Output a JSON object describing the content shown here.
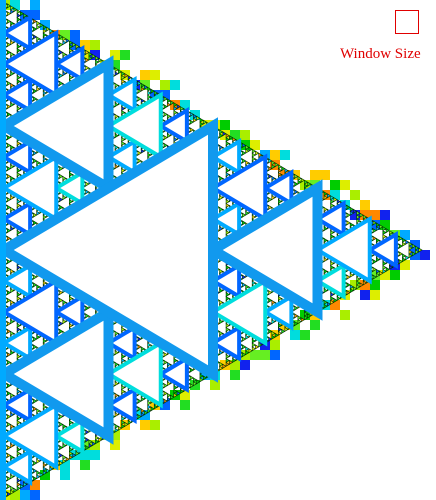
{
  "window_size_control": {
    "label": "Window Size",
    "color": "#e00000"
  },
  "fractal": {
    "kind": "sierpinski-triangle",
    "orientation": "pointing-right",
    "depth": 7,
    "fill_palette": [
      "#00cc00",
      "#22dd22",
      "#66ee22",
      "#aaee00",
      "#ddee00",
      "#ffcc00",
      "#ff8800",
      "#00dddd",
      "#00aaff",
      "#0066ff",
      "#1122ee"
    ],
    "outline_color": "#003300",
    "background": "#ffffff"
  }
}
